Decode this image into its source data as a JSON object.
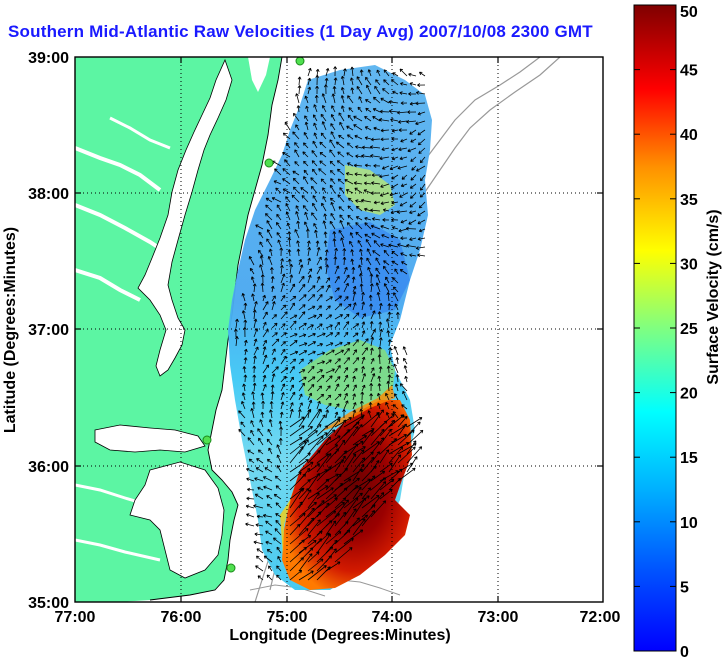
{
  "title": "Southern Mid-Atlantic Raw Velocities (1 Day Avg) 2007/10/08 2300 GMT",
  "map": {
    "xlabel": "Longitude (Degrees:Minutes)",
    "ylabel": "Latitude (Degrees:Minutes)",
    "x_ticks": [
      "77:00",
      "76:00",
      "75:00",
      "74:00",
      "73:00",
      "72:00"
    ],
    "y_ticks": [
      "39:00",
      "38:00",
      "37:00",
      "36:00",
      "35:00"
    ],
    "lon_range": [
      -77,
      -72
    ],
    "lat_range": [
      35,
      39
    ],
    "grid": "dotted"
  },
  "colorbar": {
    "label": "Surface Velocity (cm/s)",
    "ticks": [
      "50",
      "45",
      "40",
      "35",
      "30",
      "25",
      "20",
      "15",
      "10",
      "5",
      "0"
    ],
    "range": [
      0,
      50
    ]
  },
  "colors": {
    "land": "#5cf5a3",
    "title": "#1a1aff",
    "velocity_low": "#0050ff",
    "velocity_high": "#7f0000"
  }
}
